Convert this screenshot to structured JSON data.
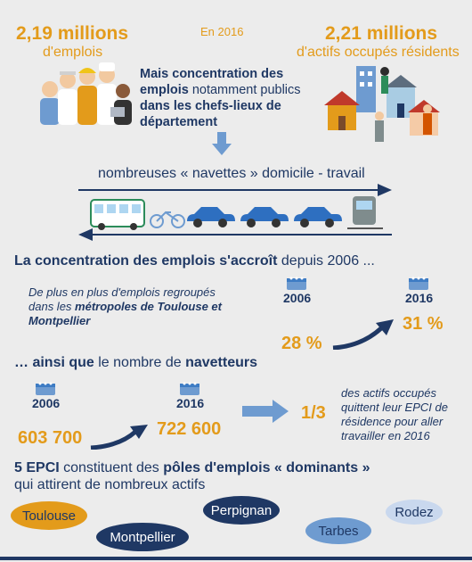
{
  "header": {
    "left_value": "2,19 millions",
    "left_label": "d'emplois",
    "center_year": "En 2016",
    "right_value": "2,21 millions",
    "right_label": "d'actifs occupés résidents",
    "concentration_bold1": "Mais concentration des emplois",
    "concentration_normal1": " notamment publics ",
    "concentration_bold2": "dans les chefs-lieux de département"
  },
  "commute": {
    "label": "nombreuses « navettes » domicile - travail"
  },
  "section1": {
    "title_bold": "La concentration des emplois s'accroît",
    "title_rest": " depuis 2006 ...",
    "desc_prefix": "De plus en plus d'emplois regroupés dans les ",
    "desc_bold": "métropoles de Toulouse et Montpellier",
    "year_from": "2006",
    "year_to": "2016",
    "pct_from": "28 %",
    "pct_to": "31 %"
  },
  "section2": {
    "title_bold1": "… ainsi que",
    "title_mid": " le nombre de ",
    "title_bold2": "navetteurs",
    "year_from": "2006",
    "year_to": "2016",
    "value_from": "603 700",
    "value_to": "722 600",
    "fraction": "1/3",
    "fraction_desc": "des actifs occupés quittent leur EPCI de résidence pour aller travailler en 2016"
  },
  "section3": {
    "title_bold1": "5 EPCI",
    "title_mid": " constituent des ",
    "title_bold2": "pôles d'emplois « dominants »",
    "title_line2": "qui attirent de nombreux actifs"
  },
  "epci": [
    {
      "name": "Toulouse",
      "color": "#e39b1b"
    },
    {
      "name": "Perpignan",
      "color": "#1f3864"
    },
    {
      "name": "Rodez",
      "color": "#c9d8ee"
    },
    {
      "name": "Montpellier",
      "color": "#1f3864"
    },
    {
      "name": "Tarbes",
      "color": "#6e9bd0"
    }
  ],
  "colors": {
    "orange": "#e39b1b",
    "navy": "#1f3864",
    "blue": "#3e7cc4",
    "light_blue": "#6e9bd0",
    "background": "#ececec"
  }
}
